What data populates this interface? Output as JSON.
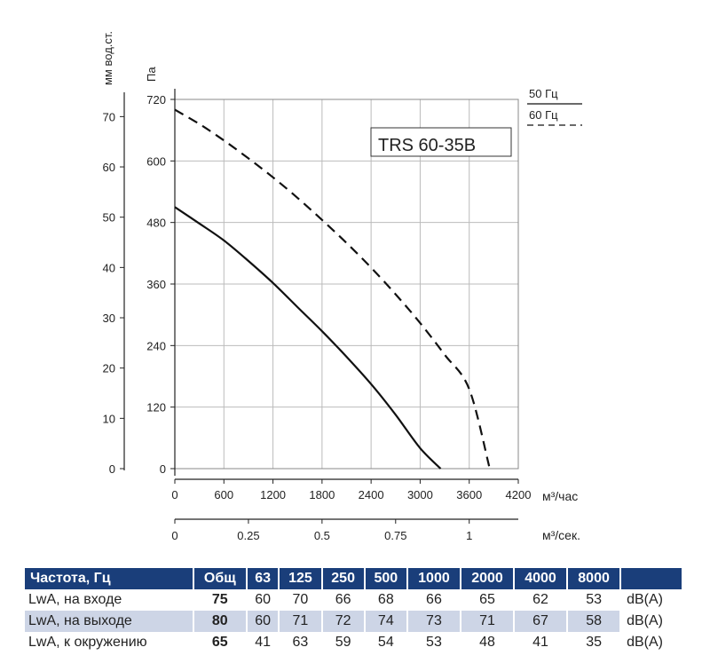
{
  "chart_data": {
    "type": "line",
    "title": "TRS 60-35B",
    "ylabel": "Па",
    "ylabel2": "мм вод.ст.",
    "xlabel": "м³/час",
    "xlabel2": "м³/сек.",
    "xlim": [
      0,
      4200
    ],
    "ylim": [
      0,
      720
    ],
    "ylim2": [
      0,
      70
    ],
    "x_ticks": [
      "0",
      "600",
      "1200",
      "1800",
      "2400",
      "3000",
      "3600",
      "4200"
    ],
    "x2_ticks": [
      "0",
      "0.25",
      "0.5",
      "0.75",
      "1"
    ],
    "y_ticks": [
      "0",
      "120",
      "240",
      "360",
      "480",
      "600",
      "720"
    ],
    "y2_ticks": [
      "0",
      "10",
      "20",
      "30",
      "40",
      "50",
      "60",
      "70"
    ],
    "grid": true,
    "legend_position": "top-right",
    "series": [
      {
        "name": "50 Гц",
        "style": "solid",
        "x": [
          0,
          300,
          600,
          900,
          1200,
          1500,
          1800,
          2100,
          2400,
          2700,
          3000,
          3250
        ],
        "y": [
          510,
          478,
          445,
          405,
          362,
          315,
          268,
          218,
          165,
          105,
          40,
          0
        ]
      },
      {
        "name": "60 Гц",
        "style": "dashed",
        "x": [
          0,
          300,
          600,
          900,
          1200,
          1500,
          1800,
          2100,
          2400,
          2700,
          3000,
          3300,
          3600,
          3850
        ],
        "y": [
          700,
          672,
          640,
          605,
          568,
          528,
          485,
          440,
          392,
          340,
          284,
          222,
          155,
          0
        ]
      }
    ]
  },
  "table": {
    "header": [
      "Частота, Гц",
      "Общ",
      "63",
      "125",
      "250",
      "500",
      "1000",
      "2000",
      "4000",
      "8000"
    ],
    "rows": [
      {
        "label": "LwA, на входе",
        "total": "75",
        "values": [
          "60",
          "70",
          "66",
          "68",
          "66",
          "65",
          "62",
          "53"
        ],
        "unit": "dB(A)"
      },
      {
        "label": "LwA, на выходе",
        "total": "80",
        "values": [
          "60",
          "71",
          "72",
          "74",
          "73",
          "71",
          "67",
          "58"
        ],
        "unit": "dB(A)"
      },
      {
        "label": "LwA, к окружению",
        "total": "65",
        "values": [
          "41",
          "63",
          "59",
          "54",
          "53",
          "48",
          "41",
          "35"
        ],
        "unit": "dB(A)"
      }
    ]
  },
  "colors": {
    "header_bg": "#1a3e7a",
    "row_shade": "#cdd5e6",
    "curve": "#111111",
    "grid": "#bbbbbb"
  }
}
